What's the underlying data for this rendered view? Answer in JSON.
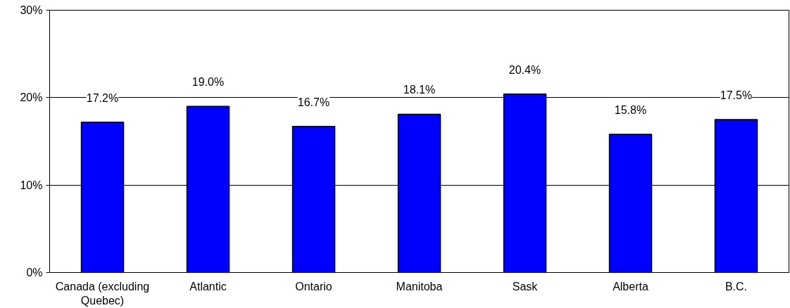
{
  "chart_data": {
    "type": "bar",
    "categories": [
      "Canada (excluding Quebec)",
      "Atlantic",
      "Ontario",
      "Manitoba",
      "Sask",
      "Alberta",
      "B.C."
    ],
    "values": [
      17.2,
      19.0,
      16.7,
      18.1,
      20.4,
      15.8,
      17.5
    ],
    "value_labels": [
      "17.2%",
      "19.0%",
      "16.7%",
      "18.1%",
      "20.4%",
      "15.8%",
      "17.5%"
    ],
    "color": "#0000ff",
    "ylim": [
      0,
      30
    ],
    "yticks": [
      {
        "value": 0,
        "label": "0%"
      },
      {
        "value": 10,
        "label": "10%"
      },
      {
        "value": 20,
        "label": "20%"
      },
      {
        "value": 30,
        "label": "30%"
      }
    ],
    "grid": "y"
  }
}
